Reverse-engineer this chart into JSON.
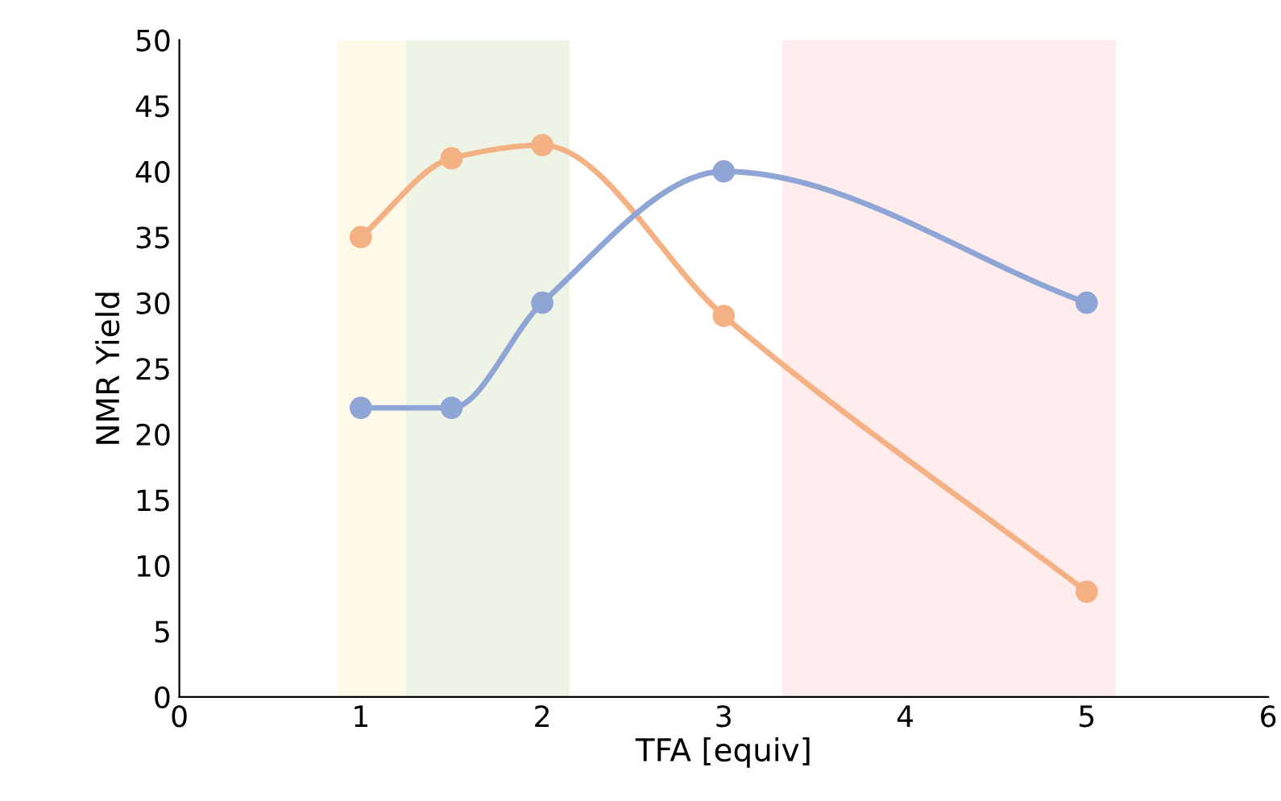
{
  "chart_data": {
    "type": "line",
    "xlabel": "TFA [equiv]",
    "ylabel": "NMR Yield",
    "series": [
      {
        "color": "#f4b183",
        "x": [
          1,
          1.5,
          2,
          3,
          5
        ],
        "values": [
          35,
          41,
          42,
          29,
          8
        ]
      },
      {
        "color": "#8fa5d6",
        "x": [
          1,
          1.5,
          2,
          3,
          5
        ],
        "values": [
          22,
          22,
          30,
          40,
          30
        ]
      }
    ],
    "xlim": [
      0,
      6
    ],
    "xticks": [
      0,
      1,
      2,
      3,
      4,
      5,
      6
    ],
    "ylim": [
      0,
      50
    ],
    "yticks": [
      0,
      5,
      10,
      15,
      20,
      25,
      30,
      35,
      40,
      45,
      50
    ],
    "marker": "circle",
    "line_style": "solid",
    "grid": false,
    "legend": false,
    "bands": [
      {
        "axis": "x",
        "from": 0.87,
        "to": 1.25,
        "color": "#fff9e9"
      },
      {
        "axis": "x",
        "from": 1.25,
        "to": 2.15,
        "color": "#edf4e6"
      },
      {
        "axis": "x",
        "from": 3.32,
        "to": 5.16,
        "color": "#ffeded"
      }
    ]
  }
}
